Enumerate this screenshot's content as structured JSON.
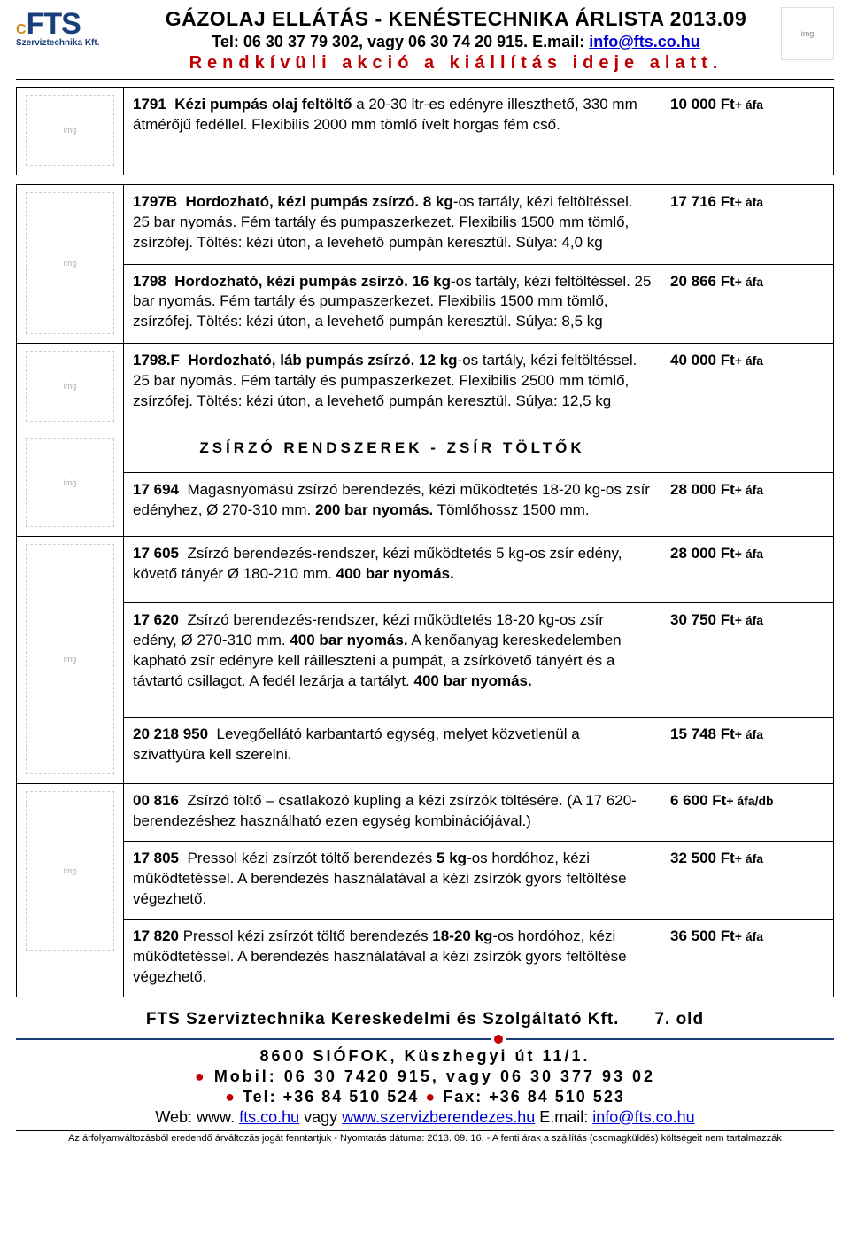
{
  "header": {
    "title": "GÁZOLAJ ELLÁTÁS - KENÉSTECHNIKA ÁRLISTA 2013.09",
    "tel_prefix": "Tel: 06 30 37 79 302, vagy 06 30 74 20 915. E.mail: ",
    "email": "info@fts.co.hu",
    "banner": "Rendkívüli akció a kiállítás ideje alatt."
  },
  "logo": {
    "fts": "FTS",
    "sub": "Szerviztechnika Kft."
  },
  "section_title": "ZSÍRZÓ RENDSZEREK - ZSÍR TÖLTŐK",
  "rows": [
    {
      "img": "pump",
      "desc_html": "<b>1791&nbsp;&nbsp;Kézi pumpás olaj feltöltő</b> a 20-30 ltr-es edényre illeszthető, 330 mm átmérőjű fedéllel. Flexibilis 2000 mm tömlő ívelt horgas fém cső.",
      "price": "10 000 Ft",
      "afa": "+ áfa"
    },
    {
      "img": "8kg",
      "desc_html": "<b>1797B&nbsp;&nbsp;Hordozható, kézi pumpás zsírzó. 8 kg</b>-os tartály, kézi feltöltéssel. 25 bar nyomás. Fém tartály és pumpaszerkezet. Flexibilis 1500 mm tömlő, zsírzófej. Töltés: kézi úton, a levehető pumpán keresztül. Súlya: 4,0 kg",
      "price": "17 716 Ft",
      "afa": "+ áfa"
    },
    {
      "img": "16kg",
      "desc_html": "<b>1798&nbsp;&nbsp;Hordozható, kézi pumpás zsírzó. 16 kg</b>-os tartály, kézi feltöltéssel. 25 bar nyomás. Fém tartály és pumpaszerkezet. Flexibilis 1500 mm tömlő, zsírzófej. Töltés: kézi úton, a levehető pumpán keresztül. Súlya: 8,5 kg",
      "price": "20 866 Ft",
      "afa": "+ áfa"
    },
    {
      "img": "1798f",
      "desc_html": "<b>1798.F&nbsp;&nbsp;Hordozható, láb pumpás zsírzó. 12 kg</b>-os tartály, kézi feltöltéssel. 25 bar nyomás. Fém tartály és pumpaszerkezet. Flexibilis 2500 mm tömlő, zsírzófej. Töltés: kézi úton, a levehető pumpán keresztül. Súlya: 12,5 kg",
      "price": "40 000 Ft",
      "afa": "+ áfa"
    },
    {
      "img": "17694",
      "desc_html": "<b>17 694</b>&nbsp;&nbsp;Magasnyomású zsírzó berendezés, kézi működtetés 18-20 kg-os zsír edényhez, Ø 270-310 mm. <b>200 bar nyomás.</b> Tömlőhossz 1500 mm.",
      "price": "28 000 Ft",
      "afa": "+ áfa"
    },
    {
      "img": "17605",
      "desc_html": "<b>17 605</b>&nbsp;&nbsp;Zsírzó berendezés-rendszer, kézi működtetés 5 kg-os zsír edény, követő tányér Ø 180-210 mm. <b>400 bar nyomás.</b>",
      "price": "28 000 Ft",
      "afa": "+ áfa"
    },
    {
      "img": "",
      "desc_html": "<b>17 620</b>&nbsp;&nbsp;Zsírzó berendezés-rendszer, kézi működtetés 18-20 kg-os zsír edény, Ø 270-310 mm. <b>400 bar nyomás.</b> A kenőanyag kereskedelemben kapható zsír edényre kell ráilleszteni a pumpát, a zsírkövető tányért és a távtartó csillagot. A fedél lezárja a tartályt. <b>400 bar nyomás.</b>",
      "price": "30 750 Ft",
      "afa": "+ áfa"
    },
    {
      "img": "20218",
      "desc_html": "<b>20 218 950</b>&nbsp;&nbsp;Levegőellátó karbantartó egység, melyet közvetlenül a szivattyúra kell szerelni.",
      "price": "15 748 Ft",
      "afa": "+ áfa"
    },
    {
      "img": "00816",
      "desc_html": "<b>00 816</b>&nbsp;&nbsp;Zsírzó töltő – csatlakozó kupling a kézi zsírzók töltésére. (A 17 620-berendezéshez használható ezen egység kombinációjával.)",
      "price": "6 600 Ft",
      "afa": "+ áfa/db"
    },
    {
      "img": "17805",
      "desc_html": "<b>17 805</b>&nbsp;&nbsp;Pressol kézi zsírzót töltő berendezés <b>5 kg</b>-os hordóhoz, kézi működtetéssel. A berendezés használatával a kézi zsírzók gyors feltöltése végezhető.",
      "price": "32 500 Ft",
      "afa": "+ áfa"
    },
    {
      "img": "",
      "desc_html": "<b>17 820</b>&nbsp;Pressol kézi zsírzót töltő berendezés <b>18-20 kg</b>-os hordóhoz, kézi működtetéssel. A berendezés használatával a kézi zsírzók gyors feltöltése végezhető.",
      "price": "36 500 Ft",
      "afa": "+ áfa"
    }
  ],
  "footer": {
    "company": "FTS Szerviztechnika Kereskedelmi és Szolgáltató Kft.",
    "page": "7. old",
    "addr": "8600 SIÓFOK, Küszhegyi út 11/1.",
    "mobil": "Mobil: 06 30 7420 915, vagy 06 30 377 93 02",
    "tel": "Tel: +36 84 510 524",
    "fax": "Fax: +36 84 510 523",
    "web_prefix": "Web: www. ",
    "web1": "fts.co.hu",
    "web_mid": " vagy ",
    "web2": "www.szervizberendezes.hu",
    "email_prefix": " E.mail: ",
    "email": "info@fts.co.hu",
    "fine": "Az árfolyamváltozásból eredendő árváltozás jogát fenntartjuk - Nyomtatás dátuma: 2013. 09. 16. - A fenti árak a szállítás (csomagküldés) költségeit nem tartalmazzák"
  },
  "colors": {
    "red": "#c00000",
    "blue": "#0000d8",
    "navy": "#1a3e7a",
    "border": "#000000"
  }
}
